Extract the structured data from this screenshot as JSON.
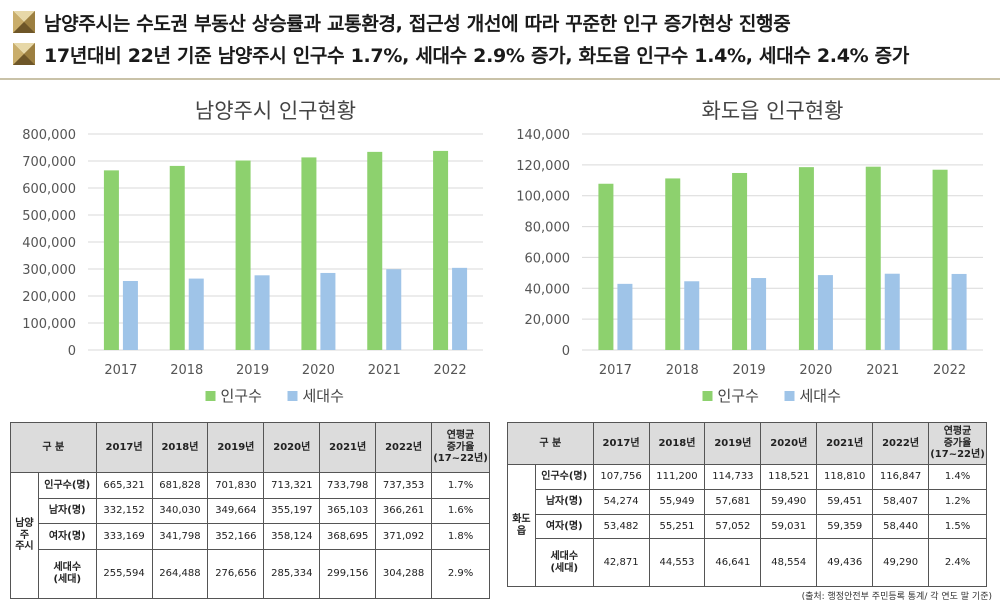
{
  "headlines": [
    "남양주시는 수도권 부동산 상승률과 교통환경, 접근성 개선에 따라 꾸준한 인구 증가현상 진행중",
    "17년대비 22년 기준 남양주시 인구수 1.7%, 세대수 2.9% 증가, 화도읍 인구수 1.4%, 세대수 2.4% 증가"
  ],
  "colors": {
    "population": "#8dd16e",
    "households": "#9fc4e8",
    "grid": "#d9d9d9",
    "header_gold": "#b89b53"
  },
  "chart_data": [
    {
      "type": "bar",
      "title": "남양주시 인구현황",
      "categories": [
        "2017",
        "2018",
        "2019",
        "2020",
        "2021",
        "2022"
      ],
      "series": [
        {
          "name": "인구수",
          "values": [
            665321,
            681828,
            701830,
            713321,
            733798,
            737353
          ]
        },
        {
          "name": "세대수",
          "values": [
            255594,
            264488,
            276656,
            285334,
            299156,
            304288
          ]
        }
      ],
      "ylim": [
        0,
        800000
      ],
      "yticks": [
        "0",
        "100,000",
        "200,000",
        "300,000",
        "400,000",
        "500,000",
        "600,000",
        "700,000",
        "800,000"
      ],
      "grid": true,
      "legend": "bottom"
    },
    {
      "type": "bar",
      "title": "화도읍 인구현황",
      "categories": [
        "2017",
        "2018",
        "2019",
        "2020",
        "2021",
        "2022"
      ],
      "series": [
        {
          "name": "인구수",
          "values": [
            107756,
            111200,
            114733,
            118521,
            118810,
            116847
          ]
        },
        {
          "name": "세대수",
          "values": [
            42871,
            44553,
            46641,
            48554,
            49436,
            49290
          ]
        }
      ],
      "ylim": [
        0,
        140000
      ],
      "yticks": [
        "0",
        "20,000",
        "40,000",
        "60,000",
        "80,000",
        "100,000",
        "120,000",
        "140,000"
      ],
      "grid": true,
      "legend": "bottom"
    }
  ],
  "tables": [
    {
      "group": "남양주\n주시",
      "header": {
        "label": "구 분",
        "years": [
          "2017년",
          "2018년",
          "2019년",
          "2020년",
          "2021년",
          "2022년"
        ],
        "rate": "연평균\n증가율\n(17~22년)"
      },
      "rows": [
        {
          "label": "인구수(명)",
          "values": [
            "665,321",
            "681,828",
            "701,830",
            "713,321",
            "733,798",
            "737,353"
          ],
          "rate": "1.7%"
        },
        {
          "label": "남자(명)",
          "values": [
            "332,152",
            "340,030",
            "349,664",
            "355,197",
            "365,103",
            "366,261"
          ],
          "rate": "1.6%"
        },
        {
          "label": "여자(명)",
          "values": [
            "333,169",
            "341,798",
            "352,166",
            "358,124",
            "368,695",
            "371,092"
          ],
          "rate": "1.8%"
        },
        {
          "label": "세대수\n(세대)",
          "values": [
            "255,594",
            "264,488",
            "276,656",
            "285,334",
            "299,156",
            "304,288"
          ],
          "rate": "2.9%"
        }
      ]
    },
    {
      "group": "화도읍",
      "header": {
        "label": "구 분",
        "years": [
          "2017년",
          "2018년",
          "2019년",
          "2020년",
          "2021년",
          "2022년"
        ],
        "rate": "연평균\n증가율\n(17~22년)"
      },
      "rows": [
        {
          "label": "인구수(명)",
          "values": [
            "107,756",
            "111,200",
            "114,733",
            "118,521",
            "118,810",
            "116,847"
          ],
          "rate": "1.4%"
        },
        {
          "label": "남자(명)",
          "values": [
            "54,274",
            "55,949",
            "57,681",
            "59,490",
            "59,451",
            "58,407"
          ],
          "rate": "1.2%"
        },
        {
          "label": "여자(명)",
          "values": [
            "53,482",
            "55,251",
            "57,052",
            "59,031",
            "59,359",
            "58,440"
          ],
          "rate": "1.5%"
        },
        {
          "label": "세대수\n(세대)",
          "values": [
            "42,871",
            "44,553",
            "46,641",
            "48,554",
            "49,436",
            "49,290"
          ],
          "rate": "2.4%"
        }
      ]
    }
  ],
  "source": "(출처: 행정안전부 주민등록 통계/ 각 연도 말 기준)"
}
